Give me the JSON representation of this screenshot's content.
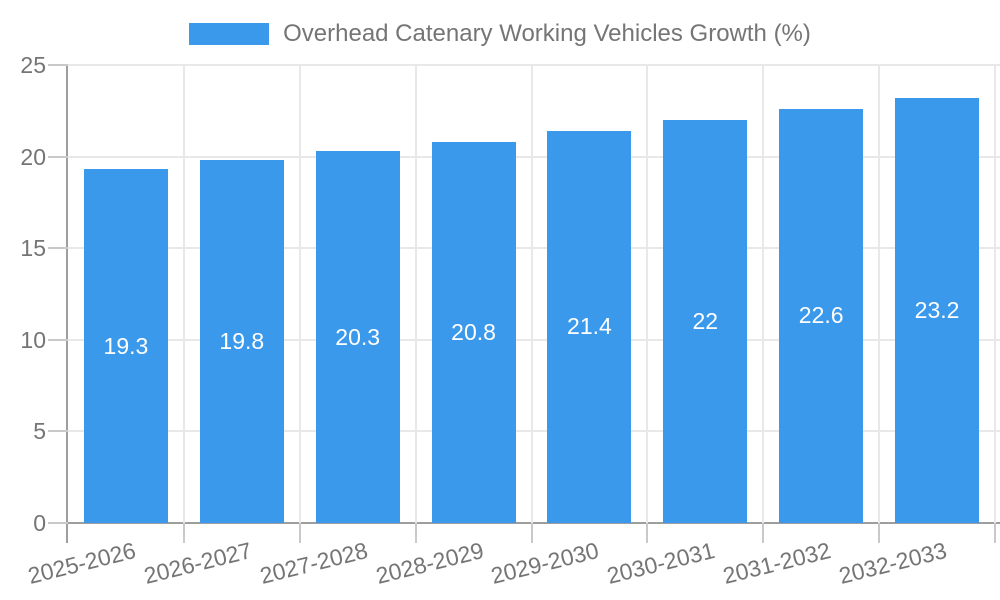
{
  "legend": {
    "label": "Overhead Catenary Working Vehicles Growth (%)"
  },
  "chart_data": {
    "type": "bar",
    "title": "Overhead Catenary Working Vehicles Growth (%)",
    "categories": [
      "2025-2026",
      "2026-2027",
      "2027-2028",
      "2028-2029",
      "2029-2030",
      "2030-2031",
      "2031-2032",
      "2032-2033"
    ],
    "values": [
      19.3,
      19.8,
      20.3,
      20.8,
      21.4,
      22,
      22.6,
      23.2
    ],
    "value_labels": [
      "19.3",
      "19.8",
      "20.3",
      "20.8",
      "21.4",
      "22",
      "22.6",
      "23.2"
    ],
    "xlabel": "",
    "ylabel": "",
    "ylim": [
      0,
      25
    ],
    "yticks": [
      0,
      5,
      10,
      15,
      20,
      25
    ],
    "grid": true,
    "legend_position": "top-center",
    "colors": {
      "bar": "#3b99ec",
      "text": "#757575",
      "grid": "#e8e8e8",
      "tick": "#c9c9c9",
      "axis": "#9e9e9e",
      "value_text": "#ffffff"
    }
  }
}
